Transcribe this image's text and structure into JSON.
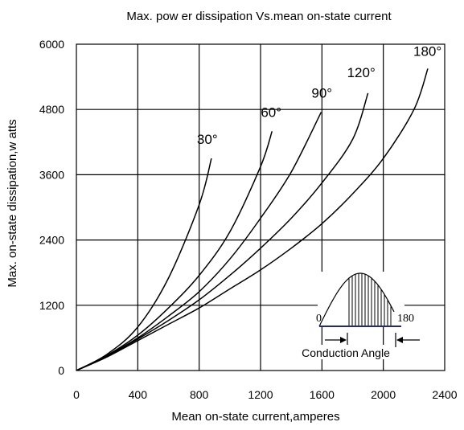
{
  "chart_data": {
    "type": "line",
    "title": "Max. pow er dissipation Vs.mean on-state current",
    "xlabel": "Mean  on-state current,amperes",
    "ylabel": "Max. on-state dissipation,w atts",
    "xlim": [
      0,
      2400
    ],
    "ylim": [
      0,
      6000
    ],
    "xticks": [
      0,
      400,
      800,
      1200,
      1600,
      2000,
      2400
    ],
    "yticks": [
      0,
      1200,
      2400,
      3600,
      4800,
      6000
    ],
    "xtick_labels": [
      "0",
      "400",
      "800",
      "1200",
      "1600",
      "2000",
      "2400"
    ],
    "ytick_labels": [
      "0",
      "1200",
      "2400",
      "3600",
      "4800",
      "6000"
    ],
    "grid": true,
    "series": [
      {
        "name": "30°",
        "x": [
          0,
          200,
          400,
          600,
          800,
          880
        ],
        "y": [
          0,
          300,
          800,
          1700,
          3050,
          3900
        ]
      },
      {
        "name": "60°",
        "x": [
          0,
          200,
          400,
          600,
          800,
          1000,
          1200,
          1275
        ],
        "y": [
          0,
          280,
          650,
          1150,
          1750,
          2550,
          3750,
          4400
        ]
      },
      {
        "name": "90°",
        "x": [
          0,
          200,
          400,
          600,
          800,
          1000,
          1200,
          1400,
          1595
        ],
        "y": [
          0,
          270,
          600,
          1000,
          1450,
          2050,
          2800,
          3650,
          4750
        ]
      },
      {
        "name": "120°",
        "x": [
          0,
          200,
          400,
          600,
          800,
          1000,
          1200,
          1400,
          1600,
          1800,
          1900
        ],
        "y": [
          0,
          260,
          580,
          920,
          1300,
          1750,
          2250,
          2800,
          3450,
          4250,
          5100
        ]
      },
      {
        "name": "180°",
        "x": [
          0,
          200,
          400,
          600,
          800,
          1000,
          1200,
          1400,
          1600,
          1800,
          2000,
          2200,
          2290
        ],
        "y": [
          0,
          250,
          550,
          850,
          1150,
          1500,
          1850,
          2250,
          2700,
          3250,
          3900,
          4800,
          5550
        ]
      }
    ],
    "inset": {
      "left_label": "0",
      "right_label": "180",
      "caption": "Conduction Angle"
    }
  }
}
